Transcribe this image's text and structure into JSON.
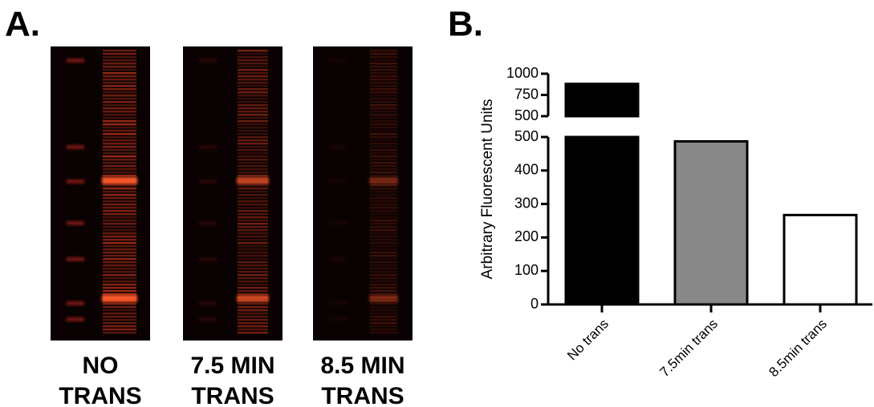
{
  "panel_a": {
    "label": "A.",
    "lanes": [
      {
        "line1": "NO",
        "line2": "TRANS"
      },
      {
        "line1": "7.5 MIN",
        "line2": "TRANS"
      },
      {
        "line1": "8.5 MIN",
        "line2": "TRANS"
      }
    ]
  },
  "chart_data": {
    "type": "bar",
    "panel_label": "B.",
    "y_label": "Arbitrary Fluorescent Units",
    "categories": [
      "No trans",
      "7.5min trans",
      "8.5min trans"
    ],
    "values": [
      880,
      487,
      267
    ],
    "colors": [
      "#000000",
      "#888888",
      "#ffffff"
    ],
    "axis_segments": [
      {
        "ylim": [
          0,
          500
        ],
        "yticks": [
          0,
          100,
          200,
          300,
          400,
          500
        ]
      },
      {
        "ylim": [
          500,
          1000
        ],
        "yticks": [
          500,
          750,
          1000
        ]
      }
    ]
  }
}
